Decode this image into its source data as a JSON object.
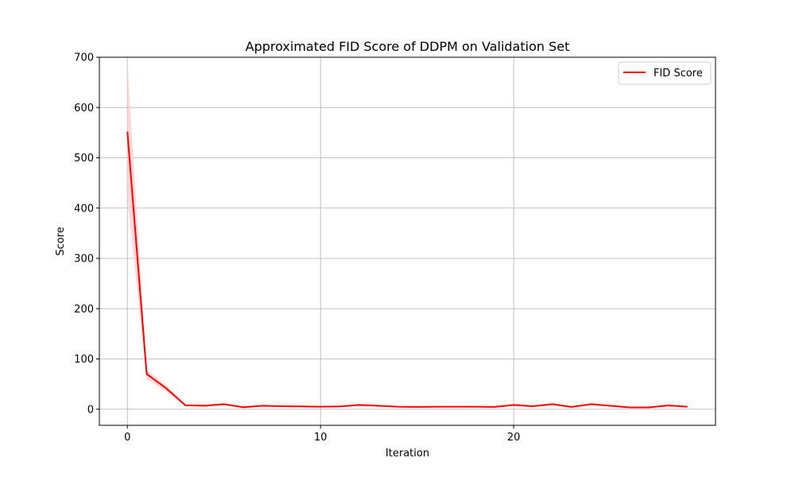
{
  "chart_data": {
    "type": "line",
    "title": "Approximated FID Score of DDPM on Validation Set",
    "xlabel": "Iteration",
    "ylabel": "Score",
    "xlim": [
      -1.45,
      30.45
    ],
    "ylim": [
      -32,
      700
    ],
    "xticks": [
      0,
      10,
      20
    ],
    "yticks": [
      0,
      100,
      200,
      300,
      400,
      500,
      600,
      700
    ],
    "grid": true,
    "legend_position": "top-right",
    "series": [
      {
        "name": "FID Score",
        "color": "#ff0000",
        "band_color": "#ffcccc",
        "x": [
          0,
          1,
          2,
          3,
          4,
          5,
          6,
          7,
          8,
          9,
          10,
          11,
          12,
          13,
          14,
          15,
          16,
          17,
          18,
          19,
          20,
          21,
          22,
          23,
          24,
          25,
          26,
          27,
          28,
          29
        ],
        "y": [
          552,
          70,
          42,
          8,
          7,
          10,
          4,
          7,
          6,
          5.5,
          5,
          5.5,
          8.5,
          7,
          5,
          4.5,
          5,
          5,
          5,
          4.5,
          8.5,
          6,
          10,
          4.5,
          10,
          7,
          3.5,
          3.5,
          7.5,
          5
        ],
        "y_lower": [
          420,
          60,
          36,
          6,
          5,
          8,
          3,
          5,
          5,
          4.5,
          4,
          4.5,
          6.5,
          5.5,
          4,
          3.5,
          4,
          4,
          4,
          3.5,
          6.5,
          4.5,
          8,
          3.5,
          8,
          5.5,
          2.5,
          2.5,
          5.5,
          4
        ],
        "y_upper": [
          690,
          78,
          48,
          10,
          9,
          12,
          5,
          9,
          7,
          6.5,
          6,
          6.5,
          10.5,
          8.5,
          6,
          5.5,
          6,
          6,
          6,
          5.5,
          10.5,
          7.5,
          13,
          5.5,
          12,
          8.5,
          4.5,
          4.5,
          9.5,
          6
        ]
      }
    ]
  }
}
